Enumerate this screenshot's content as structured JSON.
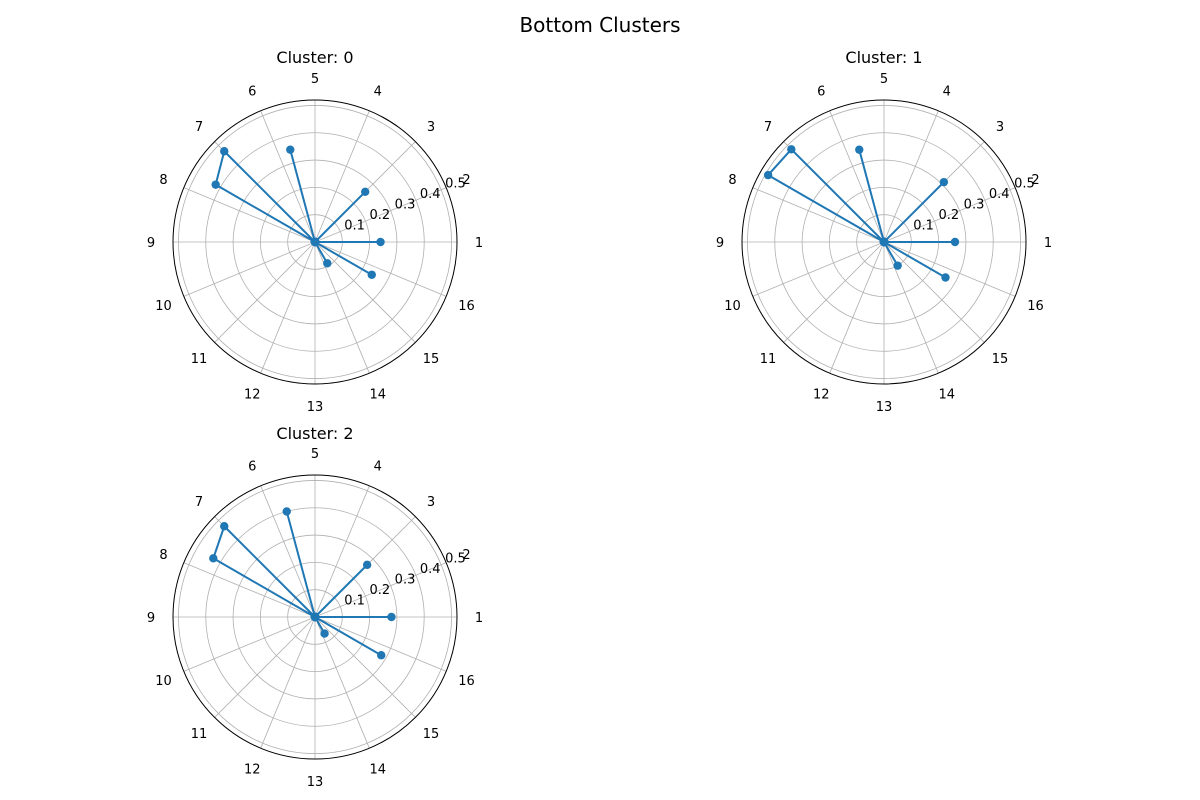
{
  "figure": {
    "title": "Bottom Clusters"
  },
  "colors": {
    "series": "#1f77b4",
    "grid": "#b0b0b0",
    "spine": "#000000"
  },
  "chart_data": [
    {
      "type": "polar-line",
      "title": "Cluster: 0",
      "theta_labels": [
        "1",
        "2",
        "3",
        "4",
        "5",
        "6",
        "7",
        "8",
        "9",
        "10",
        "11",
        "12",
        "13",
        "14",
        "15",
        "16"
      ],
      "r_ticks": [
        "0.1",
        "0.2",
        "0.3",
        "0.4",
        "0.5"
      ],
      "rlim": [
        0,
        0.52
      ],
      "grid": true,
      "series": [
        {
          "values": [
            0.24,
            0.0,
            0.0,
            0.26,
            0.0,
            0.0,
            0.0,
            0.35,
            0.0,
            0.47,
            0.42,
            0.0,
            0.0,
            0.0,
            0.0,
            0.0,
            0.0,
            0.0,
            0.0,
            0.0,
            0.09,
            0.0,
            0.24,
            0.0
          ]
        }
      ]
    },
    {
      "type": "polar-line",
      "title": "Cluster: 1",
      "theta_labels": [
        "1",
        "2",
        "3",
        "4",
        "5",
        "6",
        "7",
        "8",
        "9",
        "10",
        "11",
        "12",
        "13",
        "14",
        "15",
        "16"
      ],
      "r_ticks": [
        "0.1",
        "0.2",
        "0.3",
        "0.4",
        "0.5"
      ],
      "rlim": [
        0,
        0.52
      ],
      "grid": true,
      "series": [
        {
          "values": [
            0.26,
            0.0,
            0.0,
            0.31,
            0.0,
            0.0,
            0.0,
            0.35,
            0.0,
            0.48,
            0.49,
            0.0,
            0.0,
            0.0,
            0.0,
            0.0,
            0.0,
            0.0,
            0.0,
            0.0,
            0.1,
            0.0,
            0.26,
            0.0
          ]
        }
      ]
    },
    {
      "type": "polar-line",
      "title": "Cluster: 2",
      "theta_labels": [
        "1",
        "2",
        "3",
        "4",
        "5",
        "6",
        "7",
        "8",
        "9",
        "10",
        "11",
        "12",
        "13",
        "14",
        "15",
        "16"
      ],
      "r_ticks": [
        "0.1",
        "0.2",
        "0.3",
        "0.4",
        "0.5"
      ],
      "rlim": [
        0,
        0.52
      ],
      "grid": true,
      "series": [
        {
          "values": [
            0.28,
            0.0,
            0.0,
            0.27,
            0.0,
            0.0,
            0.0,
            0.4,
            0.0,
            0.47,
            0.43,
            0.0,
            0.0,
            0.0,
            0.0,
            0.0,
            0.0,
            0.0,
            0.0,
            0.0,
            0.07,
            0.0,
            0.28,
            0.0
          ]
        }
      ]
    }
  ]
}
